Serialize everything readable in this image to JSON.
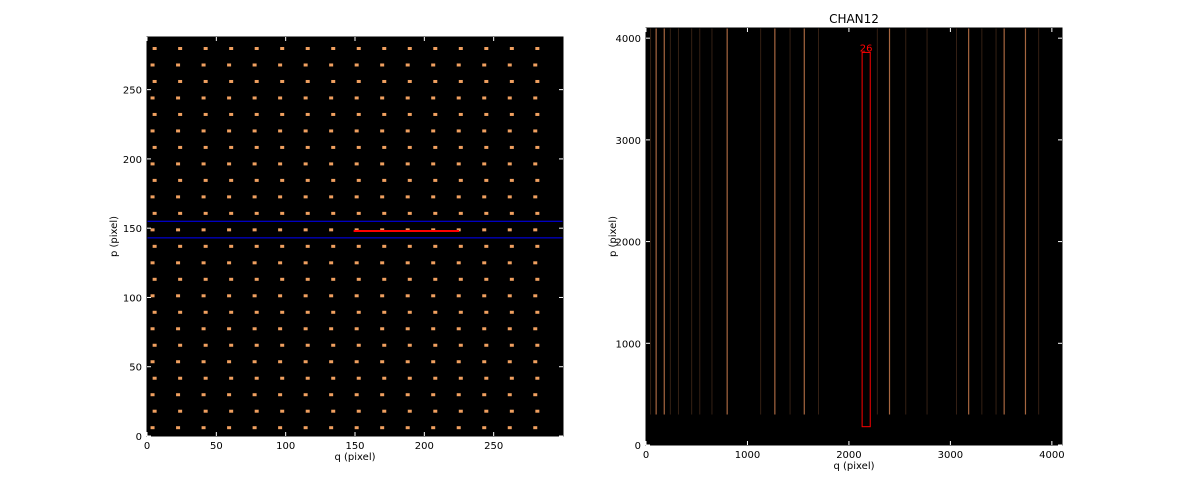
{
  "chart_data": [
    {
      "type": "heatmap",
      "title": "",
      "xlabel": "q (pixel)",
      "ylabel": "p (pixel)",
      "xlim": [
        0,
        300
      ],
      "ylim": [
        0,
        288
      ],
      "x_ticks": [
        0,
        50,
        100,
        150,
        200,
        250
      ],
      "y_ticks": [
        0,
        50,
        100,
        150,
        200,
        250
      ],
      "background": "#000000",
      "spot_color": "#f0a060",
      "spot_grid": {
        "x_start": 4,
        "x_step": 18.4,
        "x_count": 16,
        "y_start": 6,
        "y_step": 11.9,
        "y_count": 24
      },
      "blue_band": {
        "p_min": 143,
        "p_max": 155,
        "color": "#0000ff"
      },
      "red_segment": {
        "q_start": 149,
        "q_end": 225,
        "p": 148,
        "color": "#ff0000"
      }
    },
    {
      "type": "heatmap",
      "title": "CHAN12",
      "xlabel": "q (pixel)",
      "ylabel": "p (pixel)",
      "xlim": [
        0,
        4100
      ],
      "ylim": [
        0,
        4100
      ],
      "x_ticks": [
        0,
        1000,
        2000,
        3000,
        4000
      ],
      "y_ticks": [
        0,
        1000,
        2000,
        3000,
        4000
      ],
      "background": "#000000",
      "bright_lines_q": [
        100,
        180,
        800,
        1270,
        1560,
        2400,
        3180,
        3530,
        3740
      ],
      "faint_lines_q": [
        45,
        240,
        320,
        450,
        530,
        650,
        1130,
        1420,
        1700,
        2280,
        2560,
        2770,
        3060,
        3310,
        3450,
        3870
      ],
      "line_p_range": [
        300,
        4100
      ],
      "line_color": "#d08050",
      "box": {
        "q_min": 2130,
        "q_max": 2210,
        "p_min": 180,
        "p_max": 3860,
        "color": "#ff0000"
      },
      "box_label": "26"
    }
  ]
}
